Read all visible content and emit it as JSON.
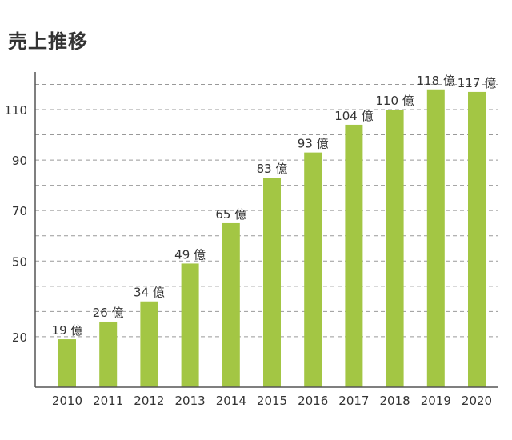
{
  "title": "売上推移",
  "chart_data": {
    "type": "bar",
    "title": "売上推移",
    "xlabel": "",
    "ylabel": "",
    "unit": "億",
    "categories": [
      "2010",
      "2011",
      "2012",
      "2013",
      "2014",
      "2015",
      "2016",
      "2017",
      "2018",
      "2019",
      "2020"
    ],
    "values": [
      19,
      26,
      34,
      49,
      65,
      83,
      93,
      104,
      110,
      118,
      117
    ],
    "data_labels": [
      "19 億",
      "26 億",
      "34 億",
      "49 億",
      "65 億",
      "83 億",
      "93 億",
      "104 億",
      "110 億",
      "118 億",
      "117 億"
    ],
    "y_ticks": [
      20,
      50,
      70,
      90,
      110
    ],
    "ylim": [
      0,
      123
    ],
    "grid": true,
    "bar_color": "#a3c644",
    "grid_color": "#999999",
    "axis_color": "#555555"
  }
}
